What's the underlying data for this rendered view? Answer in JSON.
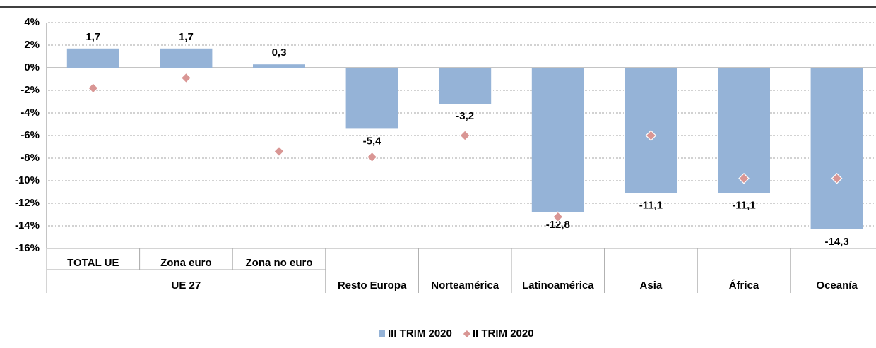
{
  "chart_data": {
    "type": "bar",
    "categories": [
      "TOTAL UE",
      "Zona euro",
      "Zona no euro",
      "Resto Europa",
      "Norteamérica",
      "Latinoamérica",
      "Asia",
      "África",
      "Oceanía"
    ],
    "category_groups": [
      "UE 27",
      "UE 27",
      "UE 27",
      null,
      null,
      null,
      null,
      null,
      null
    ],
    "series": [
      {
        "name": "III TRIM 2020",
        "type": "bar",
        "color": "#95b3d7",
        "values": [
          1.7,
          1.7,
          0.3,
          -5.4,
          -3.2,
          -12.8,
          -11.1,
          -11.1,
          -14.3
        ],
        "value_labels": [
          "1,7",
          "1,7",
          "0,3",
          "-5,4",
          "-3,2",
          "-12,8",
          "-11,1",
          "-11,1",
          "-14,3"
        ]
      },
      {
        "name": "II TRIM 2020",
        "type": "scatter",
        "color": "#d99694",
        "values": [
          -1.8,
          -0.9,
          -7.4,
          -7.9,
          -6.0,
          -13.2,
          -6.0,
          -9.8,
          -9.8
        ]
      }
    ],
    "ylim": [
      -16,
      4
    ],
    "yticks": [
      {
        "value": 4,
        "label": "4%"
      },
      {
        "value": 2,
        "label": "2%"
      },
      {
        "value": 0,
        "label": "0%"
      },
      {
        "value": -2,
        "label": "-2%"
      },
      {
        "value": -4,
        "label": "-4%"
      },
      {
        "value": -6,
        "label": "-6%"
      },
      {
        "value": -8,
        "label": "-8%"
      },
      {
        "value": -10,
        "label": "-10%"
      },
      {
        "value": -12,
        "label": "-12%"
      },
      {
        "value": -14,
        "label": "-14%"
      },
      {
        "value": -16,
        "label": "-16%"
      }
    ],
    "grid": true,
    "legend": "bottom"
  }
}
